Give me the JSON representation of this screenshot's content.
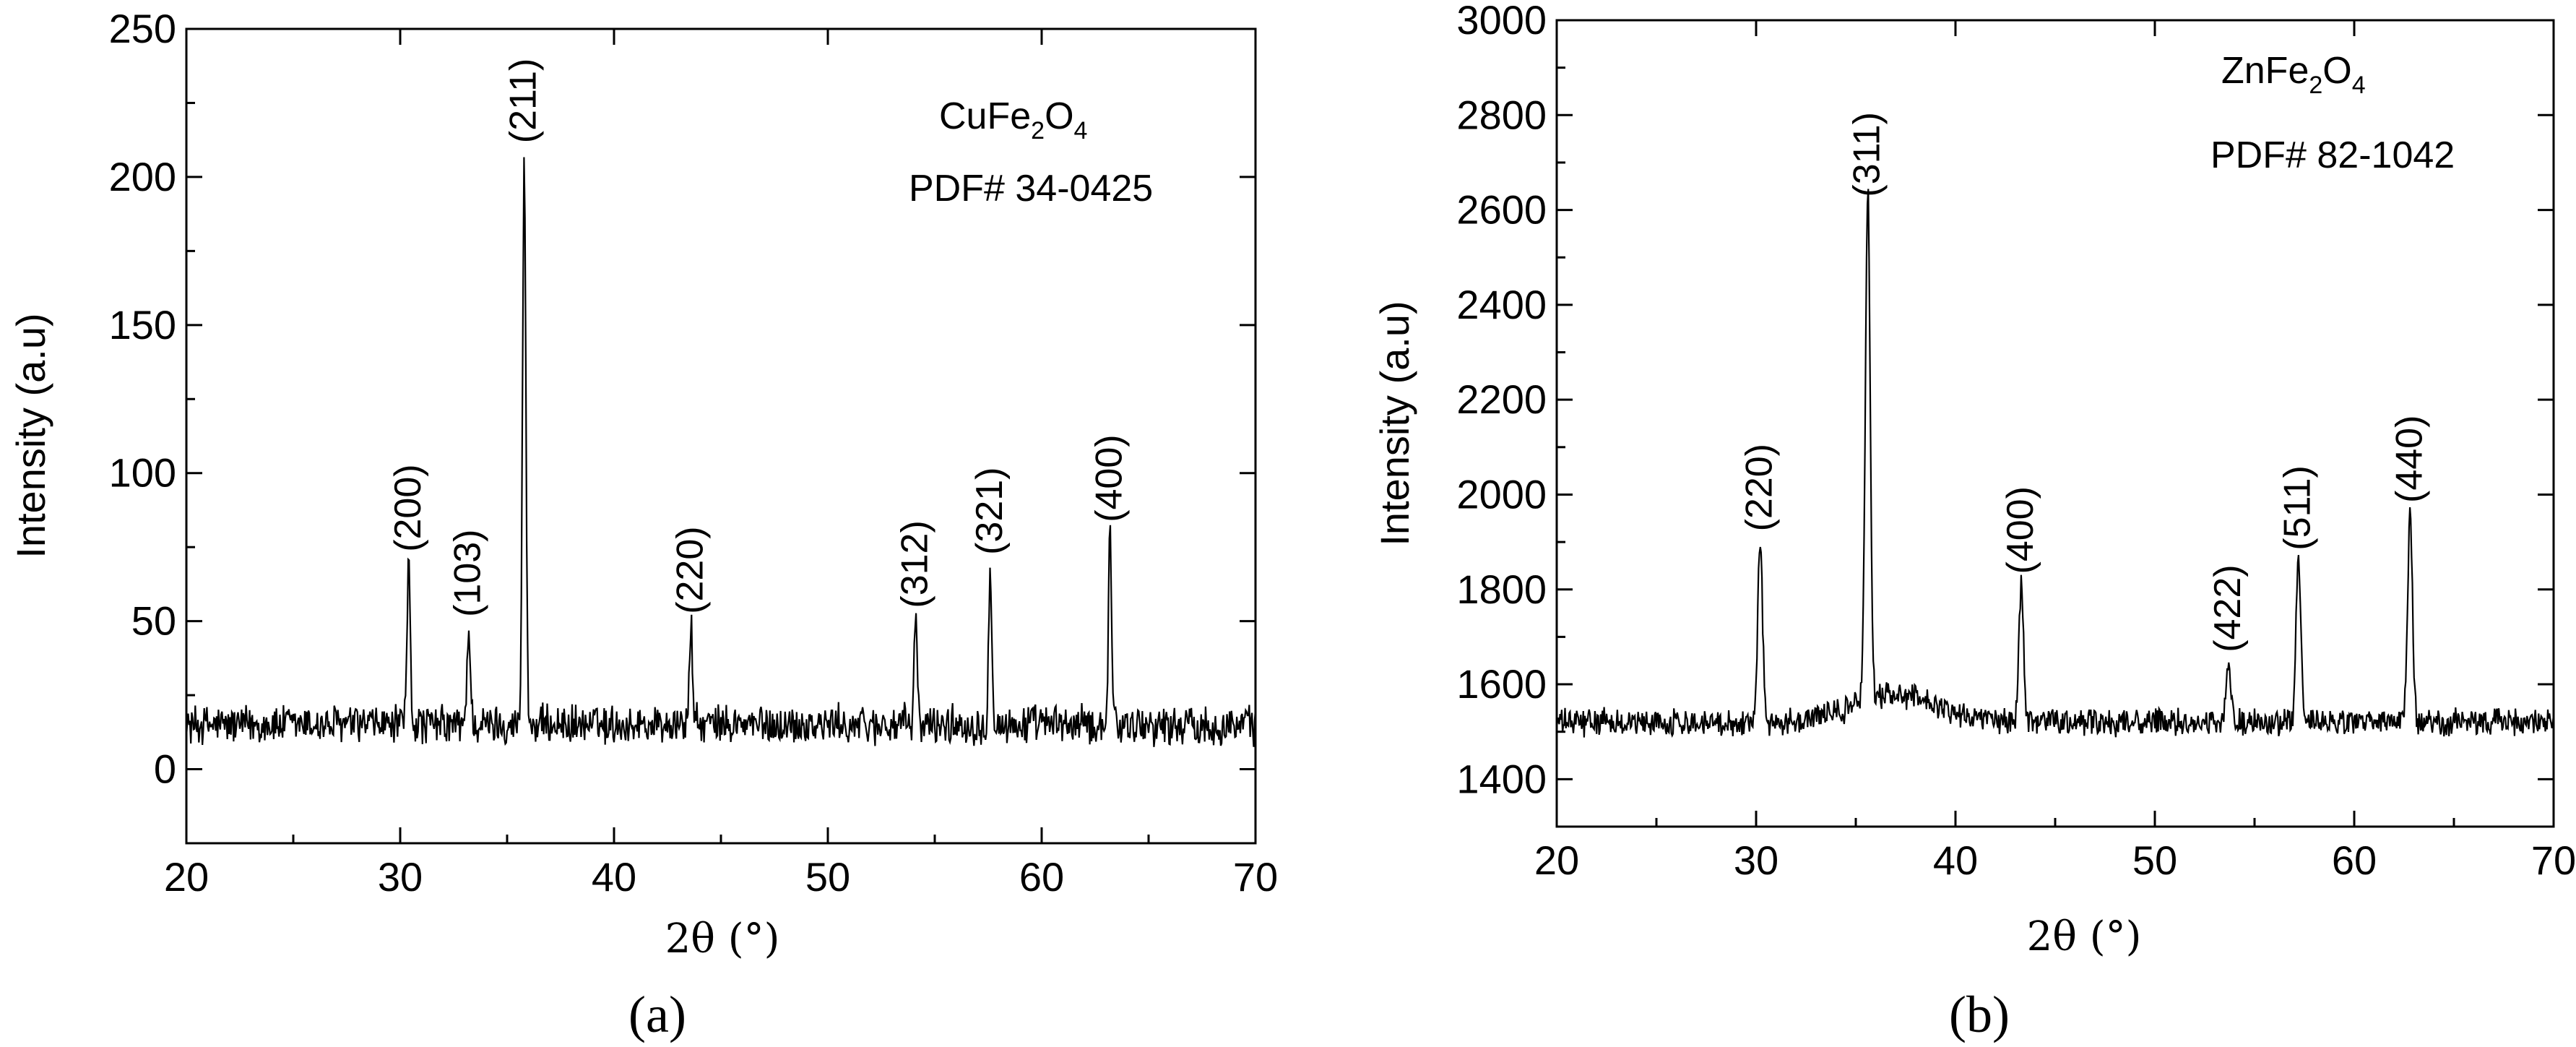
{
  "chart_data": [
    {
      "panel": "(a)",
      "type": "line",
      "xlabel": "2θ (°)",
      "ylabel": "Intensity (a.u)",
      "xlim": [
        20,
        70
      ],
      "ylim": [
        -25,
        250
      ],
      "x_ticks": [
        20,
        30,
        40,
        50,
        60,
        70
      ],
      "y_ticks": [
        0,
        50,
        100,
        150,
        200,
        250
      ],
      "baseline": 15,
      "noise": 6,
      "grid": false,
      "compound_parts": [
        "CuFe",
        "2",
        "O",
        "4"
      ],
      "pdf_label": "PDF# 34-0425",
      "peaks": [
        {
          "x": 30.4,
          "y": 69,
          "label": "(200)"
        },
        {
          "x": 33.2,
          "y": 47,
          "label": "(103)"
        },
        {
          "x": 35.8,
          "y": 207,
          "label": "(211)"
        },
        {
          "x": 43.6,
          "y": 48,
          "label": "(220)"
        },
        {
          "x": 54.1,
          "y": 50,
          "label": "(312)"
        },
        {
          "x": 57.6,
          "y": 68,
          "label": "(321)"
        },
        {
          "x": 63.2,
          "y": 79,
          "label": "(400)"
        }
      ]
    },
    {
      "panel": "(b)",
      "type": "line",
      "xlabel": "2θ (°)",
      "ylabel": "Intensity (a.u)",
      "xlim": [
        20,
        70
      ],
      "ylim": [
        1300,
        3000
      ],
      "x_ticks": [
        20,
        30,
        40,
        50,
        60,
        70
      ],
      "y_ticks": [
        1400,
        1600,
        1800,
        2000,
        2200,
        2400,
        2600,
        2800,
        3000
      ],
      "baseline": 1520,
      "noise": 25,
      "grid": false,
      "compound_parts": [
        "ZnFe",
        "2",
        "O",
        "4"
      ],
      "pdf_label": "PDF# 82-1042",
      "peaks": [
        {
          "x": 30.2,
          "y": 1895,
          "label": "(220)"
        },
        {
          "x": 35.6,
          "y": 2600,
          "label": "(311)"
        },
        {
          "x": 43.3,
          "y": 1805,
          "label": "(400)"
        },
        {
          "x": 53.7,
          "y": 1640,
          "label": "(422)"
        },
        {
          "x": 57.2,
          "y": 1855,
          "label": "(511)"
        },
        {
          "x": 62.8,
          "y": 1955,
          "label": "(440)"
        }
      ]
    }
  ]
}
